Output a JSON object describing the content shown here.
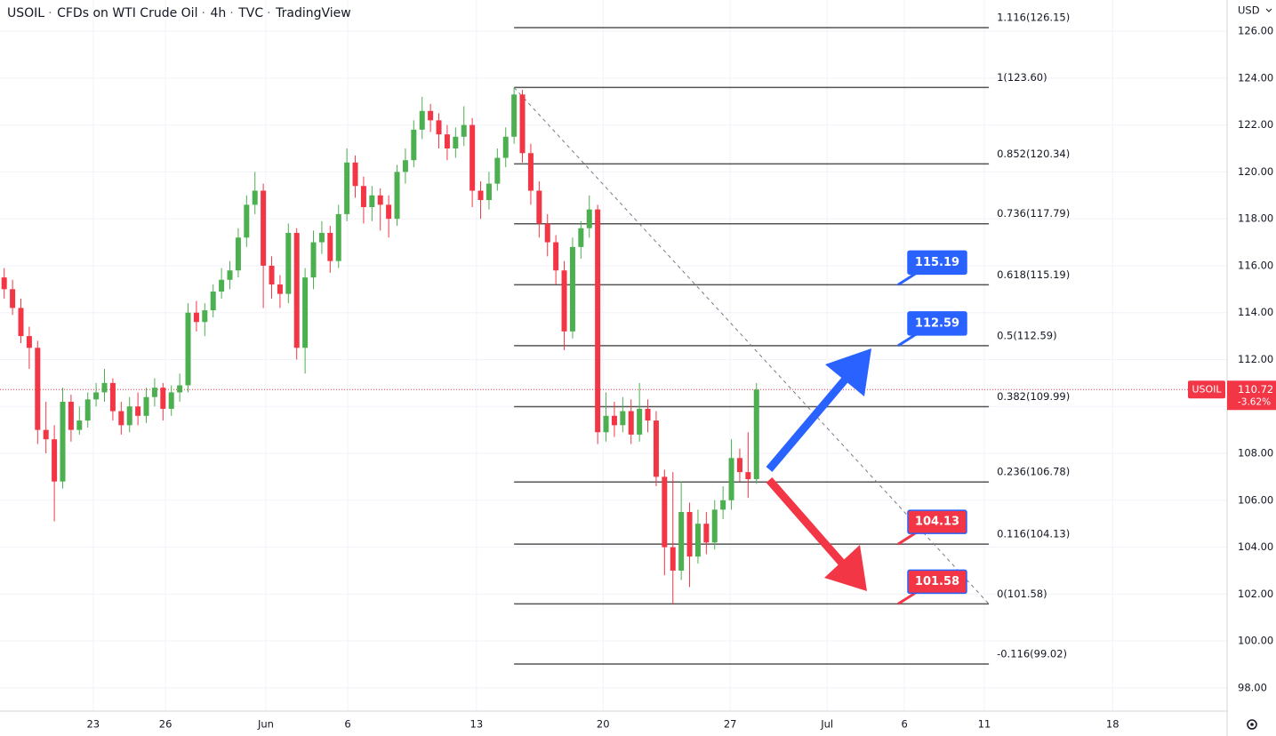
{
  "chart_data": {
    "type": "candlestick",
    "symbol": "USOIL",
    "description": "CFDs on WTI Crude Oil",
    "interval": "4h",
    "exchange": "TVC",
    "source": "TradingView",
    "currency": "USD",
    "up_color": "#4caf50",
    "down_color": "#f23645",
    "grid": true,
    "ylim": [
      97.01,
      127.33
    ],
    "yticks": [
      {
        "value": 98,
        "label": "98.00"
      },
      {
        "value": 100,
        "label": "100.00"
      },
      {
        "value": 102,
        "label": "102.00"
      },
      {
        "value": 104,
        "label": "104.00"
      },
      {
        "value": 106,
        "label": "106.00"
      },
      {
        "value": 108,
        "label": "108.00"
      },
      {
        "value": 110,
        "label": "110.00"
      },
      {
        "value": 112,
        "label": "112.00"
      },
      {
        "value": 114,
        "label": "114.00"
      },
      {
        "value": 116,
        "label": "116.00"
      },
      {
        "value": 118,
        "label": "118.00"
      },
      {
        "value": 120,
        "label": "120.00"
      },
      {
        "value": 122,
        "label": "122.00"
      },
      {
        "value": 124,
        "label": "124.00"
      },
      {
        "value": 126,
        "label": "126.00"
      }
    ],
    "xlim": [
      0,
      293.6
    ],
    "xticks": [
      {
        "value": 22.3,
        "label": "23"
      },
      {
        "value": 39.6,
        "label": "26"
      },
      {
        "value": 63.6,
        "label": "Jun"
      },
      {
        "value": 83.2,
        "label": "6"
      },
      {
        "value": 114,
        "label": "13"
      },
      {
        "value": 144.3,
        "label": "20"
      },
      {
        "value": 174.7,
        "label": "27"
      },
      {
        "value": 197.9,
        "label": "Jul"
      },
      {
        "value": 216.4,
        "label": "6"
      },
      {
        "value": 235.5,
        "label": "11"
      },
      {
        "value": 266.2,
        "label": "18"
      }
    ],
    "x": [
      1,
      3,
      5,
      7,
      9,
      11,
      13,
      15,
      17,
      19,
      21,
      23,
      25,
      27,
      29,
      31,
      33,
      35,
      37,
      39,
      41,
      43,
      45,
      47,
      49,
      51,
      53,
      55,
      57,
      59,
      61,
      63,
      65,
      67,
      69,
      71,
      73,
      75,
      77,
      79,
      81,
      83,
      85,
      87,
      89,
      91,
      93,
      95,
      97,
      99,
      101,
      103,
      105,
      107,
      109,
      111,
      113,
      115,
      117,
      119,
      121,
      123,
      125,
      127,
      129,
      131,
      133,
      135,
      137,
      139,
      141,
      143,
      145,
      147,
      149,
      151,
      153,
      155,
      157,
      159,
      161,
      163,
      165,
      167,
      169,
      171,
      173,
      175,
      177,
      179,
      181
    ],
    "candles": [
      [
        115.5,
        115.9,
        114.6,
        115.0
      ],
      [
        115.0,
        115.4,
        113.9,
        114.2
      ],
      [
        114.2,
        114.6,
        112.7,
        113.0
      ],
      [
        113.0,
        113.4,
        111.6,
        112.5
      ],
      [
        112.5,
        112.8,
        108.4,
        109.0
      ],
      [
        109.0,
        110.2,
        108.0,
        108.6
      ],
      [
        108.6,
        109.2,
        105.1,
        106.8
      ],
      [
        106.8,
        110.8,
        106.5,
        110.2
      ],
      [
        110.2,
        110.5,
        108.5,
        109.0
      ],
      [
        109.0,
        110.0,
        108.8,
        109.4
      ],
      [
        109.4,
        110.6,
        109.1,
        110.3
      ],
      [
        110.3,
        111.0,
        110.0,
        110.6
      ],
      [
        110.6,
        111.6,
        110.2,
        111.0
      ],
      [
        111.0,
        111.2,
        109.4,
        109.8
      ],
      [
        109.8,
        110.2,
        108.8,
        109.2
      ],
      [
        109.2,
        110.4,
        108.9,
        110.0
      ],
      [
        110.0,
        110.6,
        109.2,
        109.6
      ],
      [
        109.6,
        110.8,
        109.3,
        110.4
      ],
      [
        110.4,
        111.2,
        110.0,
        110.8
      ],
      [
        110.8,
        111.0,
        109.4,
        109.9
      ],
      [
        109.9,
        110.9,
        109.6,
        110.6
      ],
      [
        110.6,
        111.4,
        110.2,
        110.9
      ],
      [
        110.9,
        114.4,
        110.6,
        114.0
      ],
      [
        114.0,
        114.5,
        113.2,
        113.6
      ],
      [
        113.6,
        114.4,
        113.0,
        114.1
      ],
      [
        114.1,
        115.2,
        113.8,
        114.9
      ],
      [
        114.9,
        115.9,
        114.6,
        115.4
      ],
      [
        115.4,
        116.2,
        115.0,
        115.8
      ],
      [
        115.8,
        117.6,
        115.5,
        117.2
      ],
      [
        117.2,
        119.0,
        116.8,
        118.6
      ],
      [
        118.6,
        120.0,
        118.2,
        119.2
      ],
      [
        119.2,
        119.5,
        114.2,
        116.0
      ],
      [
        116.0,
        116.4,
        114.6,
        115.2
      ],
      [
        115.2,
        115.6,
        114.2,
        114.8
      ],
      [
        114.8,
        117.8,
        114.4,
        117.4
      ],
      [
        117.4,
        117.6,
        112.0,
        112.5
      ],
      [
        112.5,
        115.9,
        111.4,
        115.5
      ],
      [
        115.5,
        117.5,
        115.0,
        117.0
      ],
      [
        117.0,
        117.9,
        116.5,
        117.4
      ],
      [
        117.4,
        117.7,
        115.7,
        116.2
      ],
      [
        116.2,
        118.6,
        115.9,
        118.2
      ],
      [
        118.2,
        121.0,
        117.9,
        120.4
      ],
      [
        120.4,
        120.7,
        118.9,
        119.4
      ],
      [
        119.4,
        119.8,
        117.8,
        118.5
      ],
      [
        118.5,
        119.4,
        117.9,
        119.0
      ],
      [
        119.0,
        119.3,
        117.5,
        118.6
      ],
      [
        118.6,
        119.0,
        117.2,
        118.0
      ],
      [
        118.0,
        120.3,
        117.7,
        120.0
      ],
      [
        120.0,
        121.0,
        119.5,
        120.5
      ],
      [
        120.5,
        122.2,
        120.2,
        121.8
      ],
      [
        121.8,
        123.2,
        121.4,
        122.6
      ],
      [
        122.6,
        122.9,
        121.7,
        122.2
      ],
      [
        122.2,
        122.5,
        121.0,
        121.6
      ],
      [
        121.6,
        122.0,
        120.5,
        121.0
      ],
      [
        121.0,
        121.9,
        120.6,
        121.5
      ],
      [
        121.5,
        122.8,
        121.1,
        122.0
      ],
      [
        122.0,
        122.3,
        118.5,
        119.2
      ],
      [
        119.2,
        119.6,
        118.0,
        118.8
      ],
      [
        118.8,
        120.0,
        118.4,
        119.5
      ],
      [
        119.5,
        121.0,
        119.2,
        120.6
      ],
      [
        120.6,
        121.9,
        120.2,
        121.5
      ],
      [
        121.5,
        123.6,
        121.2,
        123.3
      ],
      [
        123.3,
        123.5,
        120.4,
        120.8
      ],
      [
        120.8,
        121.2,
        118.6,
        119.2
      ],
      [
        119.2,
        119.6,
        117.2,
        117.8
      ],
      [
        117.8,
        118.2,
        116.4,
        117.0
      ],
      [
        117.0,
        117.3,
        115.2,
        115.8
      ],
      [
        115.8,
        116.2,
        112.4,
        113.2
      ],
      [
        113.2,
        117.2,
        112.9,
        116.8
      ],
      [
        116.8,
        117.9,
        116.3,
        117.6
      ],
      [
        117.6,
        119.0,
        117.2,
        118.4
      ],
      [
        118.4,
        118.6,
        108.4,
        108.9
      ],
      [
        108.9,
        110.6,
        108.5,
        109.6
      ],
      [
        109.6,
        110.2,
        108.7,
        109.2
      ],
      [
        109.2,
        110.4,
        108.9,
        109.8
      ],
      [
        109.8,
        110.3,
        108.4,
        108.8
      ],
      [
        108.8,
        111.0,
        108.5,
        109.9
      ],
      [
        109.9,
        110.3,
        108.9,
        109.4
      ],
      [
        109.4,
        109.8,
        106.6,
        107.0
      ],
      [
        107.0,
        107.3,
        102.8,
        104.0
      ],
      [
        104.0,
        107.2,
        101.58,
        103.0
      ],
      [
        103.0,
        106.8,
        102.6,
        105.5
      ],
      [
        105.5,
        105.9,
        102.3,
        103.6
      ],
      [
        103.6,
        105.6,
        103.3,
        105.0
      ],
      [
        105.0,
        105.5,
        103.7,
        104.2
      ],
      [
        104.2,
        106.0,
        103.9,
        105.6
      ],
      [
        105.6,
        106.6,
        105.2,
        106.0
      ],
      [
        106.0,
        108.6,
        105.6,
        107.8
      ],
      [
        107.8,
        108.2,
        106.8,
        107.2
      ],
      [
        107.2,
        108.9,
        106.1,
        106.9
      ],
      [
        106.9,
        111.0,
        106.7,
        110.72
      ]
    ],
    "last_price": 110.72,
    "change_pct": {
      "value": -3.62,
      "label": "-3.62%"
    },
    "fib": {
      "x_start": 123,
      "x_end": 236.6,
      "color": "#555555",
      "levels": [
        {
          "value": 126.15,
          "label": "1.116(126.15)"
        },
        {
          "value": 123.6,
          "label": "1(123.60)"
        },
        {
          "value": 120.34,
          "label": "0.852(120.34)"
        },
        {
          "value": 117.79,
          "label": "0.736(117.79)"
        },
        {
          "value": 115.19,
          "label": "0.618(115.19)"
        },
        {
          "value": 112.59,
          "label": "0.5(112.59)"
        },
        {
          "value": 109.99,
          "label": "0.382(109.99)"
        },
        {
          "value": 106.78,
          "label": "0.236(106.78)"
        },
        {
          "value": 104.13,
          "label": "0.116(104.13)"
        },
        {
          "value": 101.58,
          "label": "0(101.58)"
        },
        {
          "value": 99.02,
          "label": "-0.116(99.02)"
        }
      ]
    },
    "trendline": {
      "x": [
        123,
        236.6
      ],
      "y": [
        123.6,
        101.58
      ]
    },
    "targets": [
      {
        "value": 115.19,
        "color": "#2962ff"
      },
      {
        "value": 112.59,
        "color": "#2962ff"
      },
      {
        "value": 104.13,
        "color": "#f23645"
      },
      {
        "value": 101.58,
        "color": "#f23645"
      }
    ]
  }
}
